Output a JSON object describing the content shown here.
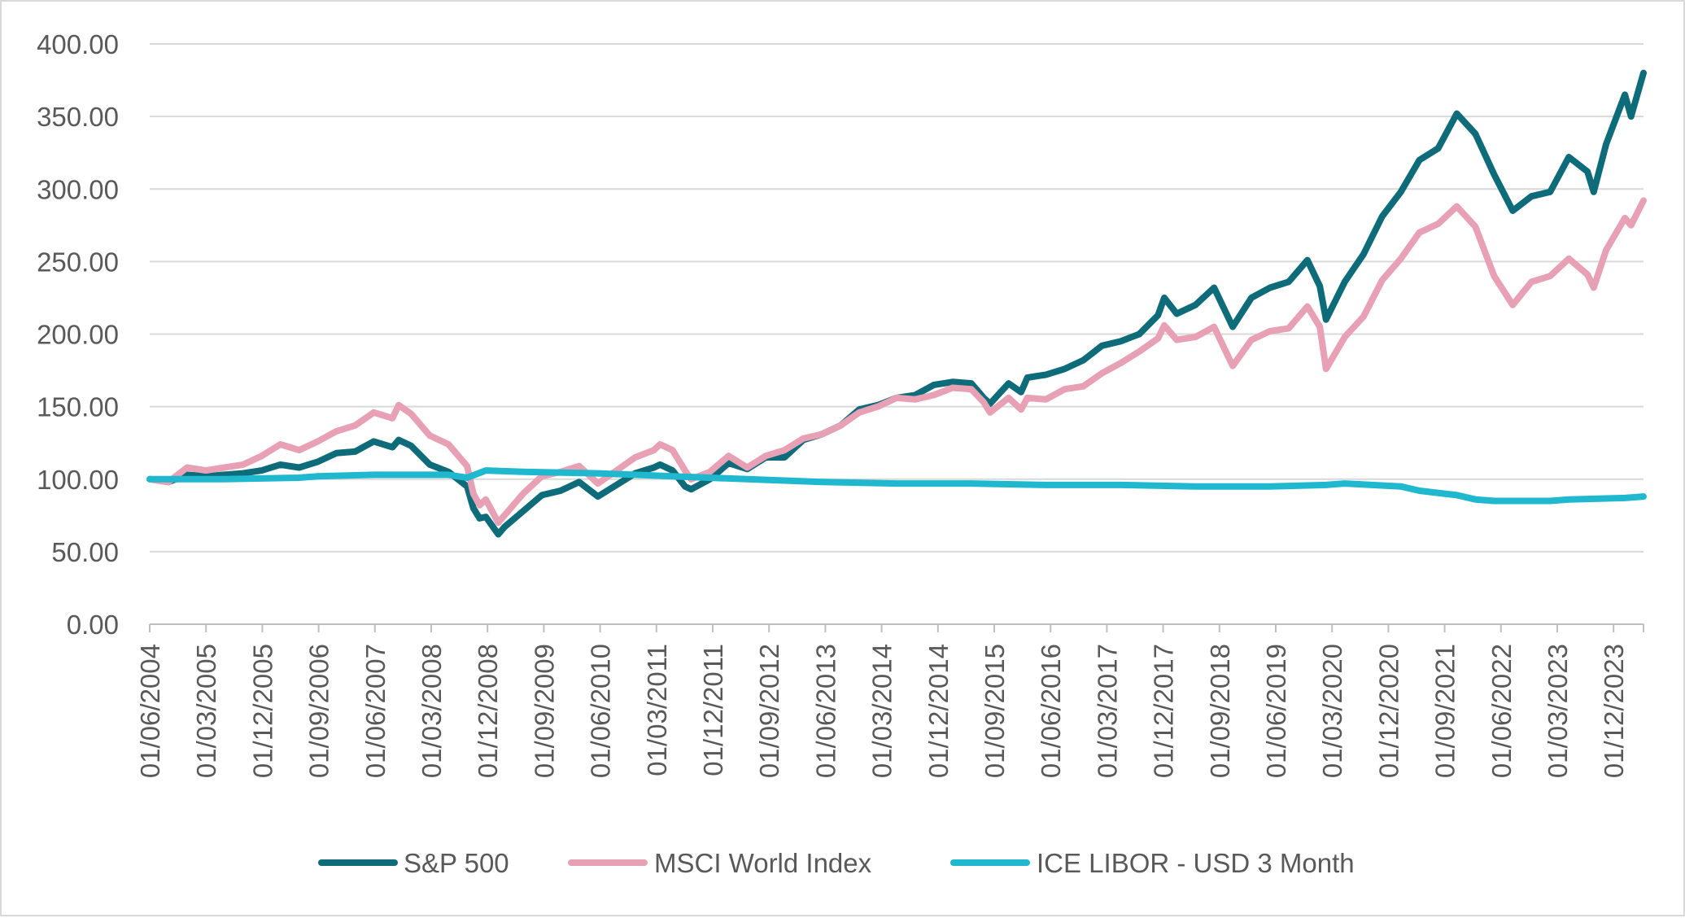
{
  "chart_data": {
    "type": "line",
    "title": "",
    "xlabel": "",
    "ylabel": "",
    "ylim": [
      0,
      400
    ],
    "y_ticks": [
      "400.00",
      "350.00",
      "300.00",
      "250.00",
      "200.00",
      "150.00",
      "100.00",
      "50.00",
      "0.00"
    ],
    "x_tick_labels": [
      "01/06/2004",
      "01/03/2005",
      "01/12/2005",
      "01/09/2006",
      "01/06/2007",
      "01/03/2008",
      "01/12/2008",
      "01/09/2009",
      "01/06/2010",
      "01/03/2011",
      "01/12/2011",
      "01/09/2012",
      "01/06/2013",
      "01/03/2014",
      "01/12/2014",
      "01/09/2015",
      "01/06/2016",
      "01/03/2017",
      "01/12/2017",
      "01/09/2018",
      "01/06/2019",
      "01/03/2020",
      "01/12/2020",
      "01/09/2021",
      "01/06/2022",
      "01/03/2023",
      "01/12/2023"
    ],
    "x_range": [
      "2004-06",
      "2024-06"
    ],
    "grid": "horizontal",
    "legend_position": "bottom",
    "series": [
      {
        "name": "S&P 500",
        "color": "#0e6b7a",
        "points": [
          [
            "2004-06",
            100
          ],
          [
            "2004-09",
            98
          ],
          [
            "2004-12",
            103
          ],
          [
            "2005-03",
            102
          ],
          [
            "2005-06",
            103
          ],
          [
            "2005-09",
            104
          ],
          [
            "2005-12",
            106
          ],
          [
            "2006-03",
            110
          ],
          [
            "2006-06",
            108
          ],
          [
            "2006-09",
            112
          ],
          [
            "2006-12",
            118
          ],
          [
            "2007-03",
            119
          ],
          [
            "2007-06",
            126
          ],
          [
            "2007-09",
            122
          ],
          [
            "2007-10",
            127
          ],
          [
            "2007-12",
            123
          ],
          [
            "2008-03",
            110
          ],
          [
            "2008-06",
            105
          ],
          [
            "2008-09",
            95
          ],
          [
            "2008-10",
            80
          ],
          [
            "2008-11",
            73
          ],
          [
            "2008-12",
            74
          ],
          [
            "2009-02",
            62
          ],
          [
            "2009-03",
            67
          ],
          [
            "2009-06",
            78
          ],
          [
            "2009-09",
            89
          ],
          [
            "2009-12",
            92
          ],
          [
            "2010-03",
            98
          ],
          [
            "2010-06",
            88
          ],
          [
            "2010-09",
            96
          ],
          [
            "2010-12",
            104
          ],
          [
            "2011-03",
            108
          ],
          [
            "2011-04",
            110
          ],
          [
            "2011-06",
            106
          ],
          [
            "2011-08",
            95
          ],
          [
            "2011-09",
            93
          ],
          [
            "2011-12",
            100
          ],
          [
            "2012-03",
            111
          ],
          [
            "2012-06",
            107
          ],
          [
            "2012-09",
            115
          ],
          [
            "2012-12",
            115
          ],
          [
            "2013-03",
            127
          ],
          [
            "2013-06",
            131
          ],
          [
            "2013-09",
            137
          ],
          [
            "2013-12",
            148
          ],
          [
            "2014-03",
            151
          ],
          [
            "2014-06",
            156
          ],
          [
            "2014-09",
            158
          ],
          [
            "2014-12",
            165
          ],
          [
            "2015-03",
            167
          ],
          [
            "2015-06",
            166
          ],
          [
            "2015-08",
            156
          ],
          [
            "2015-09",
            152
          ],
          [
            "2015-12",
            166
          ],
          [
            "2016-02",
            160
          ],
          [
            "2016-03",
            170
          ],
          [
            "2016-06",
            172
          ],
          [
            "2016-09",
            176
          ],
          [
            "2016-12",
            182
          ],
          [
            "2017-03",
            192
          ],
          [
            "2017-06",
            195
          ],
          [
            "2017-09",
            200
          ],
          [
            "2017-12",
            213
          ],
          [
            "2018-01",
            225
          ],
          [
            "2018-03",
            214
          ],
          [
            "2018-06",
            220
          ],
          [
            "2018-09",
            232
          ],
          [
            "2018-12",
            205
          ],
          [
            "2019-03",
            225
          ],
          [
            "2019-06",
            232
          ],
          [
            "2019-09",
            236
          ],
          [
            "2019-12",
            251
          ],
          [
            "2020-02",
            233
          ],
          [
            "2020-03",
            210
          ],
          [
            "2020-06",
            236
          ],
          [
            "2020-09",
            255
          ],
          [
            "2020-12",
            281
          ],
          [
            "2021-03",
            298
          ],
          [
            "2021-06",
            320
          ],
          [
            "2021-09",
            328
          ],
          [
            "2021-12",
            352
          ],
          [
            "2022-03",
            338
          ],
          [
            "2022-06",
            310
          ],
          [
            "2022-09",
            285
          ],
          [
            "2022-12",
            295
          ],
          [
            "2023-03",
            298
          ],
          [
            "2023-06",
            322
          ],
          [
            "2023-09",
            312
          ],
          [
            "2023-10",
            298
          ],
          [
            "2023-12",
            331
          ],
          [
            "2024-03",
            365
          ],
          [
            "2024-04",
            350
          ],
          [
            "2024-06",
            380
          ]
        ]
      },
      {
        "name": "MSCI World Index",
        "color": "#e8a0b4",
        "points": [
          [
            "2004-06",
            100
          ],
          [
            "2004-09",
            98
          ],
          [
            "2004-12",
            108
          ],
          [
            "2005-03",
            106
          ],
          [
            "2005-06",
            108
          ],
          [
            "2005-09",
            110
          ],
          [
            "2005-12",
            116
          ],
          [
            "2006-03",
            124
          ],
          [
            "2006-06",
            120
          ],
          [
            "2006-09",
            126
          ],
          [
            "2006-12",
            133
          ],
          [
            "2007-03",
            137
          ],
          [
            "2007-06",
            146
          ],
          [
            "2007-09",
            142
          ],
          [
            "2007-10",
            151
          ],
          [
            "2007-12",
            145
          ],
          [
            "2008-03",
            130
          ],
          [
            "2008-06",
            124
          ],
          [
            "2008-09",
            109
          ],
          [
            "2008-10",
            90
          ],
          [
            "2008-11",
            82
          ],
          [
            "2008-12",
            86
          ],
          [
            "2009-02",
            70
          ],
          [
            "2009-03",
            75
          ],
          [
            "2009-06",
            90
          ],
          [
            "2009-09",
            102
          ],
          [
            "2009-12",
            105
          ],
          [
            "2010-03",
            109
          ],
          [
            "2010-06",
            97
          ],
          [
            "2010-09",
            106
          ],
          [
            "2010-12",
            115
          ],
          [
            "2011-03",
            120
          ],
          [
            "2011-04",
            124
          ],
          [
            "2011-06",
            120
          ],
          [
            "2011-08",
            106
          ],
          [
            "2011-09",
            100
          ],
          [
            "2011-12",
            105
          ],
          [
            "2012-03",
            116
          ],
          [
            "2012-06",
            108
          ],
          [
            "2012-09",
            116
          ],
          [
            "2012-12",
            120
          ],
          [
            "2013-03",
            128
          ],
          [
            "2013-06",
            131
          ],
          [
            "2013-09",
            137
          ],
          [
            "2013-12",
            146
          ],
          [
            "2014-03",
            150
          ],
          [
            "2014-06",
            156
          ],
          [
            "2014-09",
            155
          ],
          [
            "2014-12",
            158
          ],
          [
            "2015-03",
            163
          ],
          [
            "2015-06",
            162
          ],
          [
            "2015-08",
            153
          ],
          [
            "2015-09",
            146
          ],
          [
            "2015-12",
            156
          ],
          [
            "2016-02",
            148
          ],
          [
            "2016-03",
            156
          ],
          [
            "2016-06",
            155
          ],
          [
            "2016-09",
            162
          ],
          [
            "2016-12",
            164
          ],
          [
            "2017-03",
            173
          ],
          [
            "2017-06",
            180
          ],
          [
            "2017-09",
            188
          ],
          [
            "2017-12",
            197
          ],
          [
            "2018-01",
            206
          ],
          [
            "2018-03",
            196
          ],
          [
            "2018-06",
            198
          ],
          [
            "2018-09",
            205
          ],
          [
            "2018-12",
            178
          ],
          [
            "2019-03",
            196
          ],
          [
            "2019-06",
            202
          ],
          [
            "2019-09",
            204
          ],
          [
            "2019-12",
            219
          ],
          [
            "2020-02",
            205
          ],
          [
            "2020-03",
            176
          ],
          [
            "2020-06",
            198
          ],
          [
            "2020-09",
            212
          ],
          [
            "2020-12",
            237
          ],
          [
            "2021-03",
            252
          ],
          [
            "2021-06",
            270
          ],
          [
            "2021-09",
            276
          ],
          [
            "2021-12",
            288
          ],
          [
            "2022-03",
            274
          ],
          [
            "2022-06",
            240
          ],
          [
            "2022-09",
            220
          ],
          [
            "2022-12",
            236
          ],
          [
            "2023-03",
            240
          ],
          [
            "2023-06",
            252
          ],
          [
            "2023-09",
            241
          ],
          [
            "2023-10",
            232
          ],
          [
            "2023-12",
            258
          ],
          [
            "2024-03",
            280
          ],
          [
            "2024-04",
            275
          ],
          [
            "2024-06",
            292
          ]
        ]
      },
      {
        "name": "ICE LIBOR - USD 3 Month",
        "color": "#1fb8cf",
        "points": [
          [
            "2004-06",
            100
          ],
          [
            "2005-06",
            100
          ],
          [
            "2006-06",
            101
          ],
          [
            "2006-09",
            102
          ],
          [
            "2007-06",
            103
          ],
          [
            "2007-12",
            103
          ],
          [
            "2008-06",
            103
          ],
          [
            "2008-09",
            101
          ],
          [
            "2008-12",
            106
          ],
          [
            "2009-06",
            105
          ],
          [
            "2010-06",
            104
          ],
          [
            "2011-06",
            102
          ],
          [
            "2012-06",
            100
          ],
          [
            "2013-06",
            98
          ],
          [
            "2014-06",
            97
          ],
          [
            "2015-06",
            97
          ],
          [
            "2016-06",
            96
          ],
          [
            "2017-06",
            96
          ],
          [
            "2018-06",
            95
          ],
          [
            "2019-06",
            95
          ],
          [
            "2020-03",
            96
          ],
          [
            "2020-06",
            97
          ],
          [
            "2021-03",
            95
          ],
          [
            "2021-06",
            92
          ],
          [
            "2021-12",
            89
          ],
          [
            "2022-03",
            86
          ],
          [
            "2022-06",
            85
          ],
          [
            "2023-03",
            85
          ],
          [
            "2023-06",
            86
          ],
          [
            "2024-03",
            87
          ],
          [
            "2024-06",
            88
          ]
        ]
      }
    ]
  }
}
